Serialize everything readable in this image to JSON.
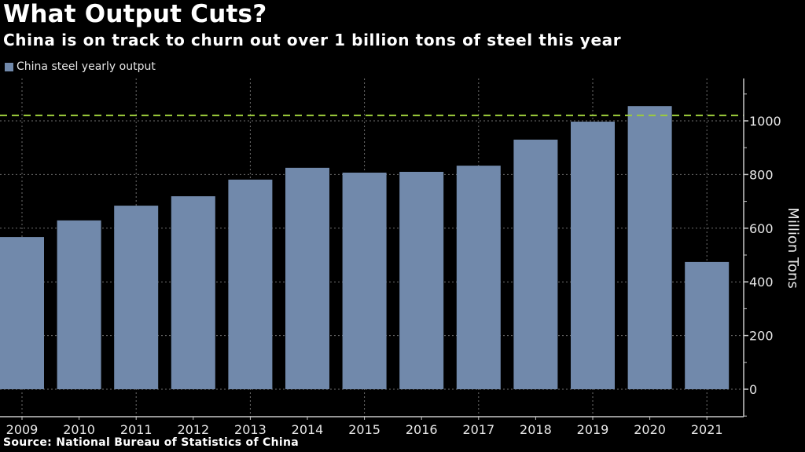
{
  "header": {
    "title": "What Output Cuts?",
    "subtitle": "China is on track to churn out over 1 billion tons of steel this year"
  },
  "footer": {
    "source": "Source: National Bureau of Statistics of China"
  },
  "colors": {
    "bar": "#7189ab",
    "reference_line": "#9ccc3c",
    "background": "#000000",
    "gridline": "#6e6e6e",
    "axis": "#c8c8c8"
  },
  "chart_data": {
    "type": "bar",
    "title": "What Output Cuts?",
    "subtitle": "China is on track to churn out over 1 billion tons of steel this year",
    "xlabel": "",
    "ylabel": "Million Tons",
    "categories": [
      "2009",
      "2010",
      "2011",
      "2012",
      "2013",
      "2014",
      "2015",
      "2016",
      "2017",
      "2018",
      "2019",
      "2020",
      "2021"
    ],
    "series": [
      {
        "name": "China steel yearly output",
        "values": [
          567,
          629,
          684,
          719,
          781,
          825,
          807,
          810,
          833,
          930,
          997,
          1055,
          474
        ]
      }
    ],
    "reference_line": {
      "value": 1020,
      "style": "dashed"
    },
    "ylim": [
      -100,
      1150
    ],
    "yticks": [
      0,
      200,
      400,
      600,
      800,
      1000
    ],
    "ytick_labels": [
      "0",
      "200",
      "400",
      "600",
      "800",
      "1000"
    ],
    "y_axis_side": "right",
    "grid": true,
    "legend_position": "top-left",
    "source": "Source: National Bureau of Statistics of China"
  }
}
